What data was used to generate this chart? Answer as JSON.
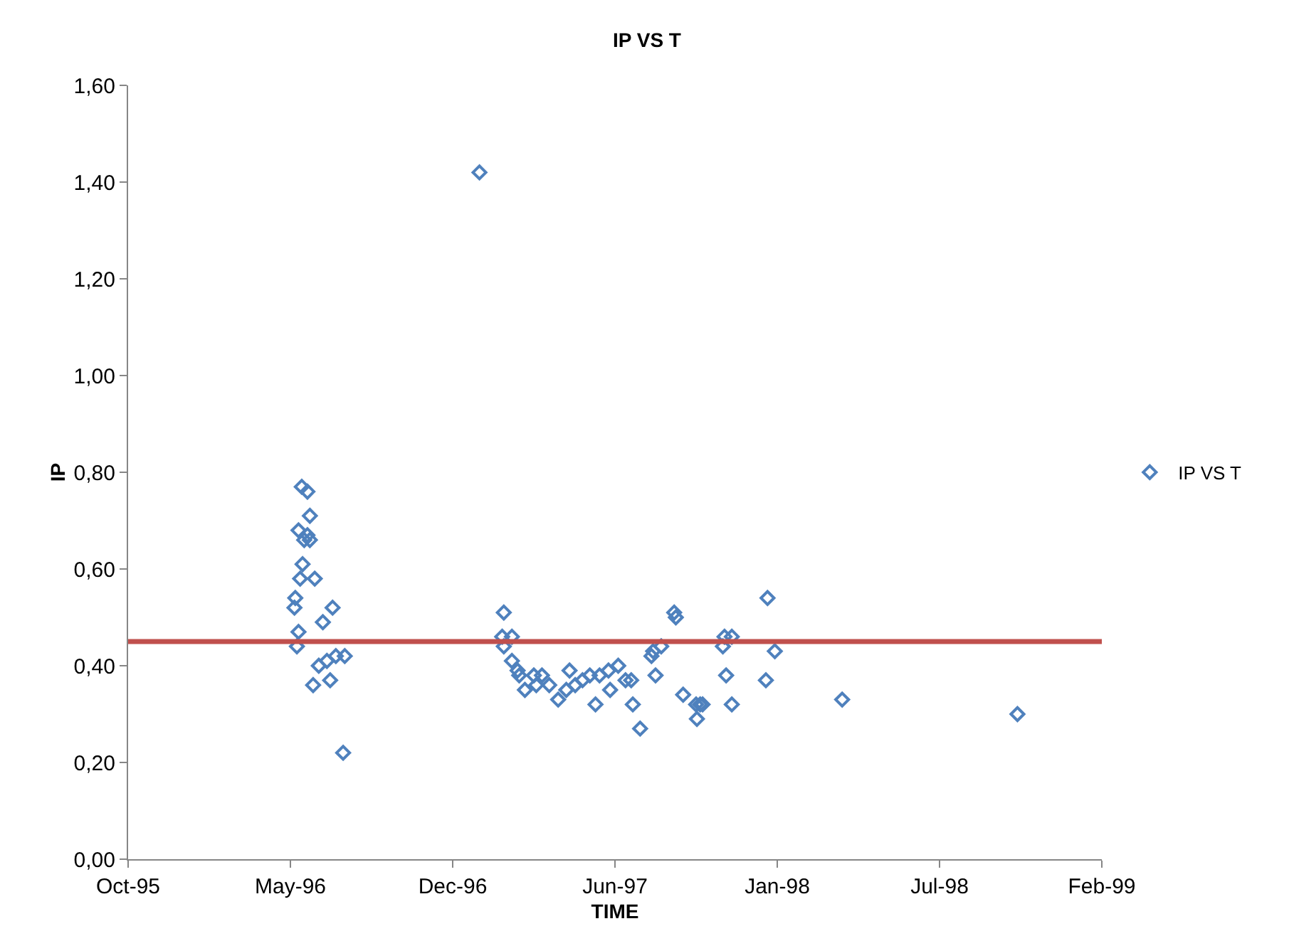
{
  "chart_data": {
    "type": "scatter",
    "title": "IP VS T",
    "xlabel": "TIME",
    "ylabel": "IP",
    "xlim": [
      "1995-10-31",
      "1999-02-12"
    ],
    "xticks": [
      {
        "value": "1995-10-31",
        "label": "Oct-95"
      },
      {
        "value": "1996-05-18",
        "label": "May-96"
      },
      {
        "value": "1996-12-04",
        "label": "Dec-96"
      },
      {
        "value": "1997-06-22",
        "label": "Jun-97"
      },
      {
        "value": "1998-01-08",
        "label": "Jan-98"
      },
      {
        "value": "1998-07-27",
        "label": "Jul-98"
      },
      {
        "value": "1999-02-12",
        "label": "Feb-99"
      }
    ],
    "ylim": [
      0,
      1.6
    ],
    "yticks": [
      {
        "value": 0,
        "label": "0,00"
      },
      {
        "value": 0.2,
        "label": "0,20"
      },
      {
        "value": 0.4,
        "label": "0,40"
      },
      {
        "value": 0.6,
        "label": "0,60"
      },
      {
        "value": 0.8,
        "label": "0,80"
      },
      {
        "value": 1.0,
        "label": "1,00"
      },
      {
        "value": 1.2,
        "label": "1,20"
      },
      {
        "value": 1.4,
        "label": "1,40"
      },
      {
        "value": 1.6,
        "label": "1,60"
      }
    ],
    "grid": false,
    "legend": "right",
    "marker": "diamond",
    "series": [
      {
        "name": "IP VS T",
        "color": "#4f81bd",
        "x": [
          "1996-06-01",
          "1996-06-08",
          "1996-06-11",
          "1996-05-28",
          "1996-06-08",
          "1996-06-11",
          "1996-06-04",
          "1996-06-02",
          "1996-05-30",
          "1996-06-17",
          "1996-05-24",
          "1996-05-23",
          "1996-07-09",
          "1996-06-27",
          "1996-05-28",
          "1996-05-26",
          "1996-06-22",
          "1996-07-02",
          "1996-07-13",
          "1996-07-24",
          "1996-06-15",
          "1996-07-06",
          "1996-07-22",
          "1997-01-06",
          "1997-02-05",
          "1997-02-03",
          "1997-02-15",
          "1997-02-05",
          "1997-02-15",
          "1997-02-22",
          "1997-02-24",
          "1997-03-14",
          "1997-03-24",
          "1997-03-03",
          "1997-03-17",
          "1997-04-02",
          "1997-04-13",
          "1997-04-27",
          "1997-04-23",
          "1997-05-04",
          "1997-05-13",
          "1997-05-22",
          "1997-05-29",
          "1997-06-03",
          "1997-06-14",
          "1997-06-16",
          "1997-06-26",
          "1997-07-05",
          "1997-07-12",
          "1997-07-14",
          "1997-07-23",
          "1997-08-06",
          "1997-08-11",
          "1997-09-03",
          "1997-09-05",
          "1997-11-04",
          "1997-11-02",
          "1997-11-13",
          "1997-08-08",
          "1997-08-18",
          "1998-01-05",
          "1997-11-06",
          "1997-12-25",
          "1997-09-14",
          "1997-09-30",
          "1997-10-05",
          "1997-11-13",
          "1997-10-01",
          "1997-12-27",
          "1998-03-29",
          "1997-10-08",
          "1998-10-31"
        ],
        "values": [
          0.77,
          0.76,
          0.71,
          0.68,
          0.67,
          0.66,
          0.66,
          0.61,
          0.58,
          0.58,
          0.54,
          0.52,
          0.52,
          0.49,
          0.47,
          0.44,
          0.4,
          0.41,
          0.42,
          0.42,
          0.36,
          0.37,
          0.22,
          1.42,
          0.51,
          0.46,
          0.46,
          0.44,
          0.41,
          0.39,
          0.38,
          0.38,
          0.38,
          0.35,
          0.36,
          0.36,
          0.33,
          0.39,
          0.35,
          0.36,
          0.37,
          0.38,
          0.32,
          0.38,
          0.39,
          0.35,
          0.4,
          0.37,
          0.37,
          0.32,
          0.27,
          0.42,
          0.38,
          0.51,
          0.5,
          0.46,
          0.44,
          0.46,
          0.43,
          0.44,
          0.43,
          0.38,
          0.37,
          0.34,
          0.32,
          0.32,
          0.32,
          0.29,
          0.54,
          0.33,
          0.32,
          0.3
        ]
      }
    ],
    "ref_lines": [
      {
        "axis": "y",
        "value": 0.45,
        "color": "#c0504d"
      }
    ]
  }
}
